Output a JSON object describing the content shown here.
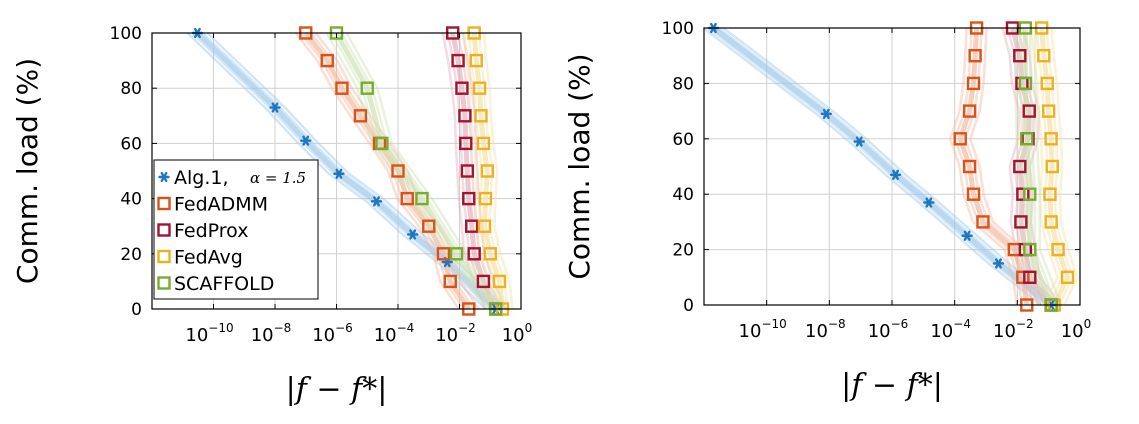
{
  "figure": {
    "panels": 2
  },
  "chart_data": [
    {
      "type": "scatter",
      "xlabel": "|f − f*|",
      "ylabel": "Comm. load (%)",
      "x_scale": "log10",
      "xlim": [
        1e-12,
        1
      ],
      "ylim": [
        0,
        100
      ],
      "x_ticks": [
        1e-10,
        1e-08,
        1e-06,
        0.0001,
        0.01,
        1
      ],
      "x_tick_labels": [
        "10",
        "10",
        "10",
        "10",
        "10",
        "10"
      ],
      "x_tick_exponents": [
        "−10",
        "−8",
        "−6",
        "−4",
        "−2",
        "0"
      ],
      "y_ticks": [
        0,
        20,
        40,
        60,
        80,
        100
      ],
      "y_tick_labels": [
        "0",
        "20",
        "40",
        "60",
        "80",
        "100"
      ],
      "grid": true,
      "legend": {
        "placement": "lower-left",
        "entries": [
          {
            "label": "Alg.1,",
            "extra": "α = 1.5",
            "series": 0
          },
          {
            "label": "FedADMM",
            "series": 1
          },
          {
            "label": "FedProx",
            "series": 2
          },
          {
            "label": "FedAvg",
            "series": 3
          },
          {
            "label": "SCAFFOLD",
            "series": 4
          }
        ]
      },
      "series": [
        {
          "name": "Alg.1",
          "color": "#1f77c4",
          "marker": "asterisk",
          "band_color": "#9cc8ea",
          "x": [
            3e-11,
            1e-08,
            1e-07,
            1.2e-06,
            2e-05,
            0.0003,
            0.004,
            0.15
          ],
          "y": [
            100,
            73,
            61,
            49,
            39,
            27,
            17,
            0
          ]
        },
        {
          "name": "FedADMM",
          "color": "#d95319",
          "marker": "square",
          "band_color": "#f2b9a0",
          "x": [
            1e-07,
            5e-07,
            1.5e-06,
            6e-06,
            2.5e-05,
            0.0001,
            0.0002,
            0.001,
            0.003,
            0.005,
            0.02
          ],
          "y": [
            100,
            90,
            80,
            70,
            60,
            50,
            40,
            30,
            20,
            10,
            0
          ]
        },
        {
          "name": "FedProx",
          "color": "#a2142f",
          "marker": "square",
          "band_color": "#e6b0bc",
          "x": [
            0.006,
            0.009,
            0.012,
            0.015,
            0.016,
            0.018,
            0.02,
            0.025,
            0.03,
            0.06,
            0.15
          ],
          "y": [
            100,
            90,
            80,
            70,
            60,
            50,
            40,
            30,
            20,
            10,
            0
          ]
        },
        {
          "name": "FedAvg",
          "color": "#edb120",
          "marker": "square",
          "band_color": "#f7dfa3",
          "x": [
            0.03,
            0.035,
            0.045,
            0.05,
            0.06,
            0.08,
            0.07,
            0.065,
            0.1,
            0.2,
            0.25
          ],
          "y": [
            100,
            90,
            80,
            70,
            60,
            50,
            40,
            30,
            20,
            10,
            0
          ]
        },
        {
          "name": "SCAFFOLD",
          "color": "#77ac30",
          "marker": "square",
          "band_color": "#cde3b3",
          "x": [
            1e-06,
            1e-05,
            3e-05,
            0.0006,
            0.008,
            0.15
          ],
          "y": [
            100,
            80,
            60,
            40,
            20,
            0
          ]
        }
      ]
    },
    {
      "type": "scatter",
      "xlabel": "|f − f*|",
      "ylabel": "Comm. load (%)",
      "x_scale": "log10",
      "xlim": [
        1e-12,
        1
      ],
      "ylim": [
        0,
        100
      ],
      "x_ticks": [
        1e-10,
        1e-08,
        1e-06,
        0.0001,
        0.01,
        1
      ],
      "x_tick_labels": [
        "10",
        "10",
        "10",
        "10",
        "10",
        "10"
      ],
      "x_tick_exponents": [
        "−10",
        "−8",
        "−6",
        "−4",
        "−2",
        "0"
      ],
      "y_ticks": [
        0,
        20,
        40,
        60,
        80,
        100
      ],
      "y_tick_labels": [
        "0",
        "20",
        "40",
        "60",
        "80",
        "100"
      ],
      "grid": true,
      "series": [
        {
          "name": "Alg.1",
          "color": "#1f77c4",
          "marker": "asterisk",
          "band_color": "#9cc8ea",
          "x": [
            2e-12,
            8e-09,
            9e-08,
            1.3e-06,
            1.5e-05,
            0.00025,
            0.0025,
            0.12
          ],
          "y": [
            100,
            69,
            59,
            47,
            37,
            25,
            15,
            0
          ]
        },
        {
          "name": "FedADMM",
          "color": "#d95319",
          "marker": "square",
          "band_color": "#f2b9a0",
          "x": [
            0.0005,
            0.00045,
            0.0004,
            0.0003,
            0.00015,
            0.0003,
            0.0004,
            0.0008,
            0.008,
            0.015,
            0.02
          ],
          "y": [
            100,
            90,
            80,
            70,
            60,
            50,
            40,
            30,
            20,
            10,
            0
          ]
        },
        {
          "name": "FedProx",
          "color": "#a2142f",
          "marker": "square",
          "band_color": "#e6b0bc",
          "x": [
            0.007,
            0.012,
            0.014,
            0.024,
            0.022,
            0.012,
            0.015,
            0.013,
            0.018,
            0.025,
            0.12
          ],
          "y": [
            100,
            90,
            80,
            70,
            60,
            50,
            40,
            30,
            20,
            10,
            0
          ]
        },
        {
          "name": "FedAvg",
          "color": "#edb120",
          "marker": "square",
          "band_color": "#f7dfa3",
          "x": [
            0.06,
            0.07,
            0.09,
            0.1,
            0.12,
            0.13,
            0.11,
            0.12,
            0.2,
            0.4,
            0.15
          ],
          "y": [
            100,
            90,
            80,
            70,
            60,
            50,
            40,
            30,
            20,
            10,
            0
          ]
        },
        {
          "name": "SCAFFOLD",
          "color": "#77ac30",
          "marker": "square",
          "band_color": "#cde3b3",
          "x": [
            0.018,
            0.018,
            0.02,
            0.025,
            0.025,
            0.12
          ],
          "y": [
            100,
            80,
            60,
            40,
            20,
            0
          ]
        }
      ]
    }
  ]
}
